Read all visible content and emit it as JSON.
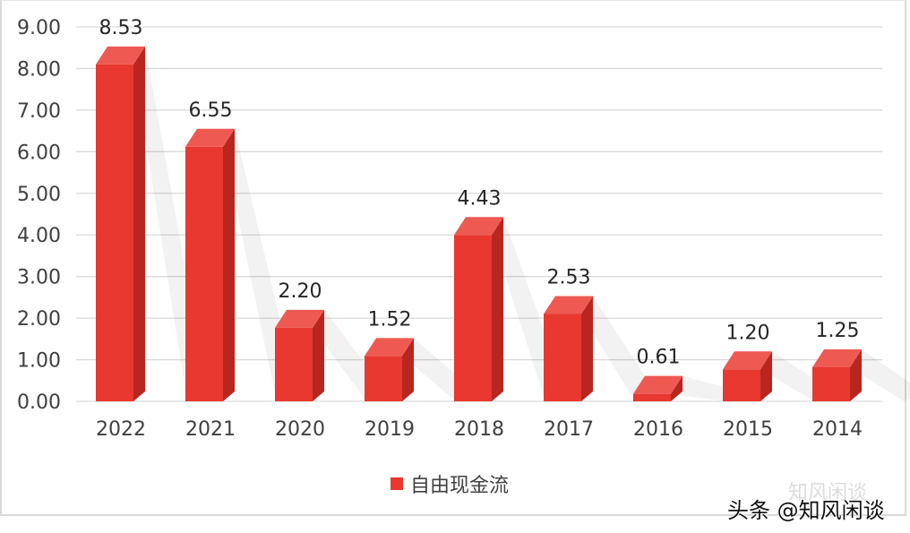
{
  "chart_data": {
    "type": "bar",
    "title": "",
    "xlabel": "",
    "ylabel": "",
    "categories": [
      "2022",
      "2021",
      "2020",
      "2019",
      "2018",
      "2017",
      "2016",
      "2015",
      "2014"
    ],
    "series": [
      {
        "name": "自由现金流",
        "values": [
          8.53,
          6.55,
          2.2,
          1.52,
          4.43,
          2.53,
          0.61,
          1.2,
          1.25
        ],
        "color": "#e8382f"
      }
    ],
    "data_labels": [
      "8.53",
      "6.55",
      "2.20",
      "1.52",
      "4.43",
      "2.53",
      "0.61",
      "1.20",
      "1.25"
    ],
    "ylim": [
      0,
      9
    ],
    "yticks": [
      "0.00",
      "1.00",
      "2.00",
      "3.00",
      "4.00",
      "5.00",
      "6.00",
      "7.00",
      "8.00",
      "9.00"
    ],
    "grid": true,
    "legend": "bottom"
  },
  "watermark": {
    "faint": "知风闲谈",
    "main": "头条 @知风闲谈"
  }
}
